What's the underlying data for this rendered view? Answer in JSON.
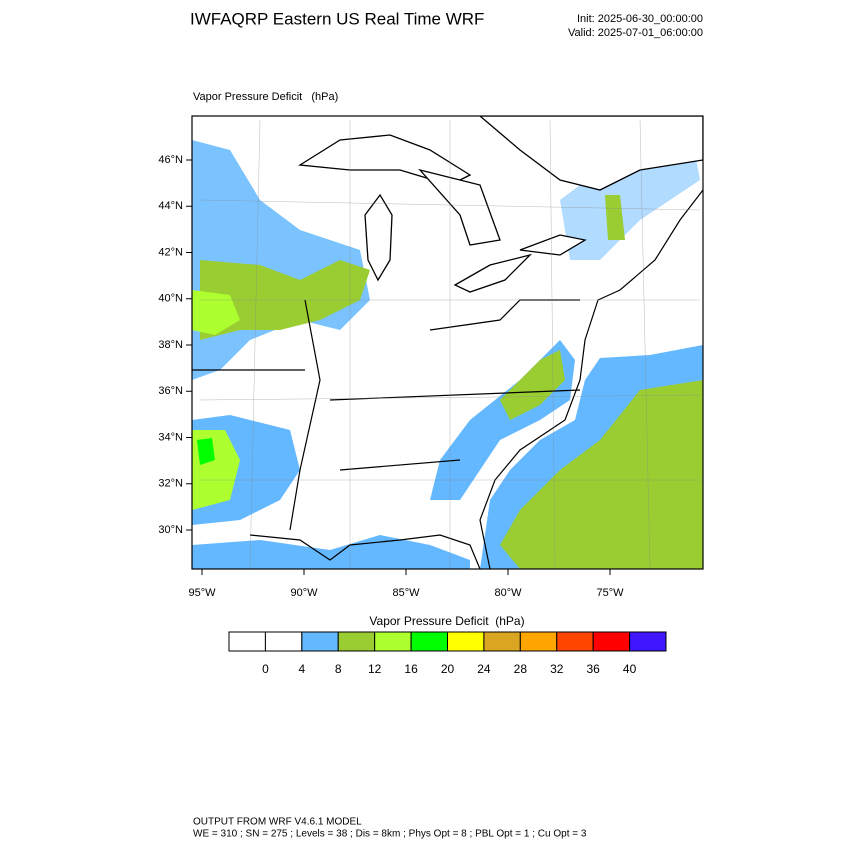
{
  "header": {
    "title": "IWFAQRP Eastern US Real Time WRF",
    "init": "Init: 2025-06-30_00:00:00",
    "valid": "Valid: 2025-07-01_06:00:00"
  },
  "map": {
    "field_label": "Vapor Pressure Deficit   (hPa)",
    "lat_labels": [
      "46°N",
      "44°N",
      "42°N",
      "40°N",
      "38°N",
      "36°N",
      "34°N",
      "32°N",
      "30°N"
    ],
    "lon_labels": [
      "95°W",
      "90°W",
      "85°W",
      "80°W",
      "75°W"
    ]
  },
  "colorbar": {
    "title": "Vapor Pressure Deficit  (hPa)",
    "levels": [
      0,
      4,
      8,
      12,
      16,
      20,
      24,
      28,
      32,
      36,
      40
    ],
    "colors": [
      "#ffffff",
      "#ffffff",
      "#63b8ff",
      "#9acd32",
      "#adff2f",
      "#00ff00",
      "#ffff00",
      "#daa520",
      "#ffa500",
      "#ff4500",
      "#ff0000",
      "#4016ff"
    ]
  },
  "footer": {
    "line1": "OUTPUT FROM WRF V4.6.1 MODEL",
    "line2": "WE = 310 ; SN = 275 ; Levels = 38 ; Dis = 8km ; Phys Opt = 8 ; PBL Opt = 1 ; Cu Opt = 3"
  }
}
